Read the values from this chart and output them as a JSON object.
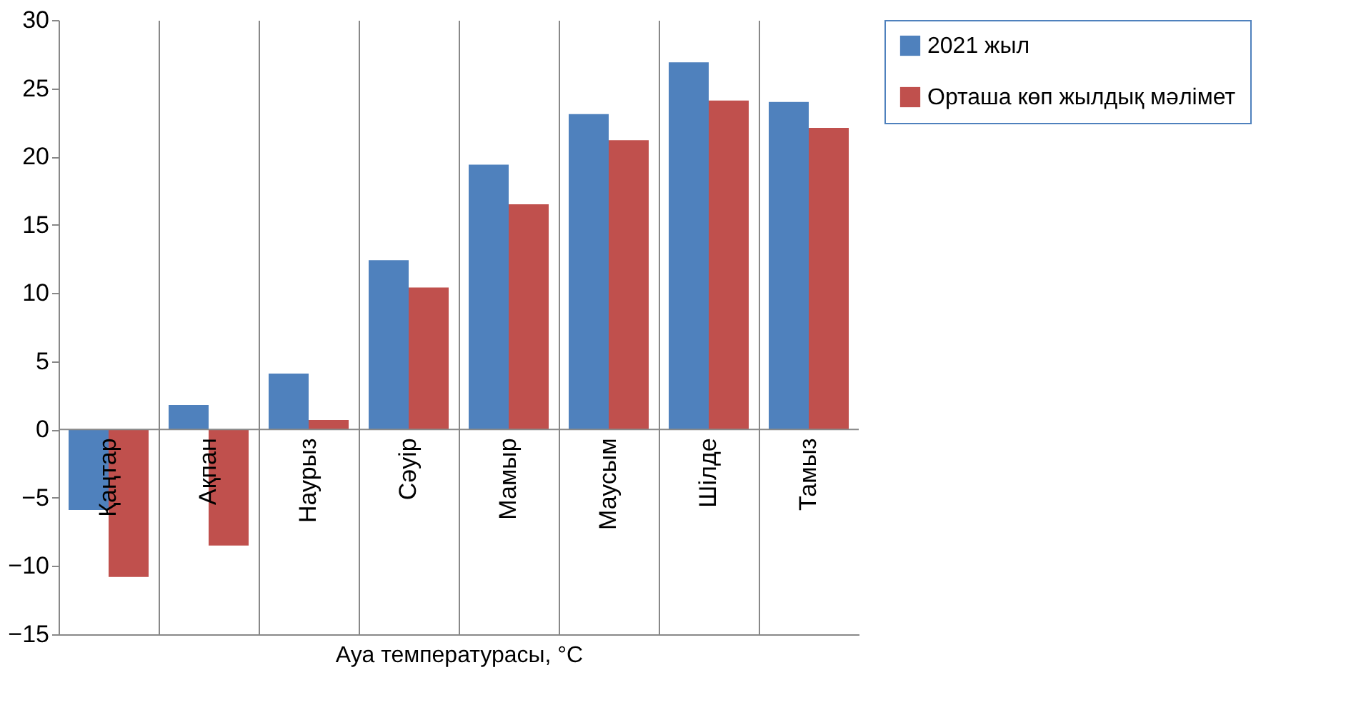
{
  "chart_data": {
    "type": "bar",
    "xlabel": "Ауа температурасы, °C",
    "categories": [
      "Қаңтар",
      "Ақпан",
      "Наурыз",
      "Сәуір",
      "Мамыр",
      "Маусым",
      "Шілде",
      "Тамыз"
    ],
    "series": [
      {
        "name": "2021 жыл",
        "color": "#4f81bd",
        "values": [
          -5.9,
          1.8,
          4.1,
          12.4,
          19.4,
          23.1,
          26.9,
          24.0
        ]
      },
      {
        "name": "Орташа көп жылдық мәлімет",
        "color": "#c0504d",
        "values": [
          -10.8,
          -8.5,
          0.7,
          10.4,
          16.5,
          21.2,
          24.1,
          22.1
        ]
      }
    ],
    "ylim": [
      -15,
      30
    ],
    "yticks": [
      -15,
      -10,
      -5,
      0,
      5,
      10,
      15,
      20,
      25,
      30
    ],
    "grid": false,
    "legend": "right"
  }
}
